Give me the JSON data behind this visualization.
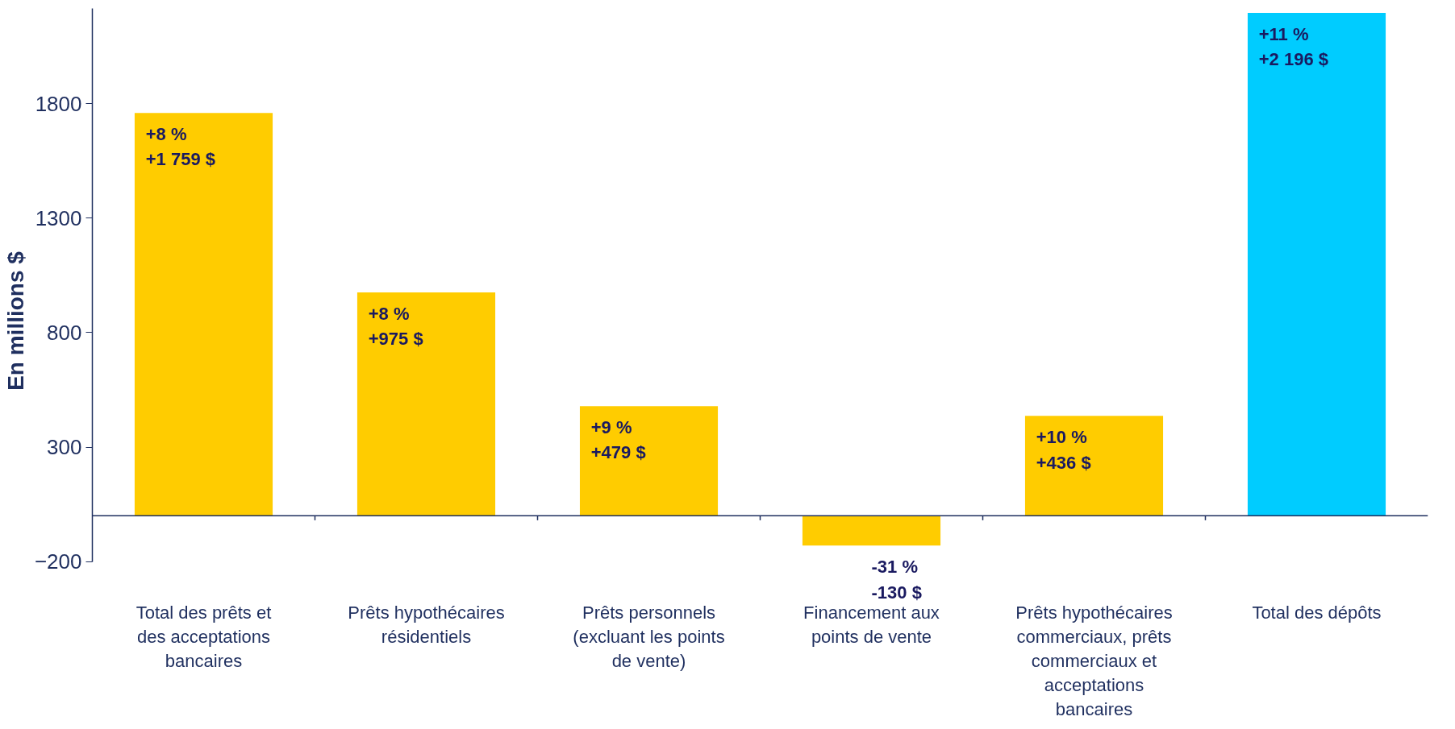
{
  "chart_data": {
    "type": "bar",
    "ylabel": "En millions $",
    "categories": [
      "Total des prêts et des acceptations bancaires",
      "Prêts hypothécaires résidentiels",
      "Prêts personnels (excluant les points de vente)",
      "Financement aux points de vente",
      "Prêts hypothécaires commerciaux, prêts commerciaux et acceptations bancaires",
      "Total des dépôts"
    ],
    "values": [
      1759,
      975,
      479,
      -130,
      436,
      2196
    ],
    "colors": [
      "#ffcc00",
      "#ffcc00",
      "#ffcc00",
      "#ffcc00",
      "#ffcc00",
      "#00ccff"
    ],
    "value_labels": [
      "+8 %\n+1 759 $",
      "+8 %\n+975 $",
      "+9 %\n+479 $",
      "-31 %\n-130 $",
      "+10 %\n+436 $",
      "+11 %\n+2 196 $"
    ],
    "ylim": [
      -200,
      2215
    ],
    "yticks": [
      -200,
      300,
      800,
      1300,
      1800
    ],
    "grid": false
  }
}
